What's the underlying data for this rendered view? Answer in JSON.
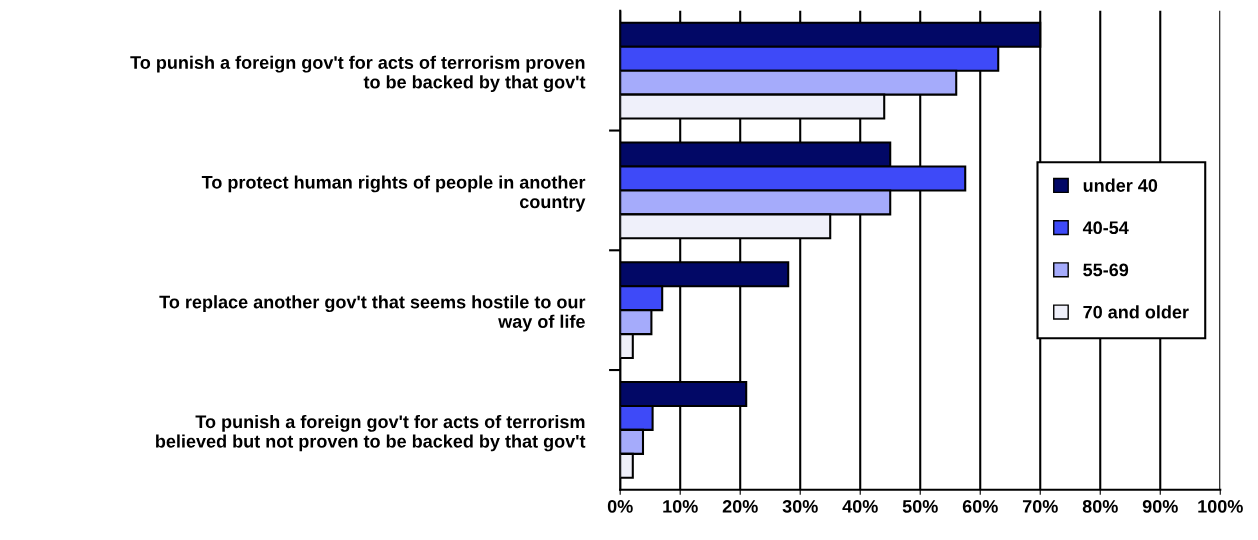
{
  "chart_data": {
    "type": "bar",
    "orientation": "horizontal",
    "categories": [
      "To punish a foreign gov't for acts of terrorism proven\nto be backed by that gov't",
      "To protect human rights of people in another\ncountry",
      "To replace another gov't that seems hostile to our\nway of life",
      "To punish a foreign gov't for acts of terrorism\nbelieved but not proven to be backed by that gov't"
    ],
    "series": [
      {
        "name": "under 40",
        "color": "#020866",
        "values": [
          70,
          45,
          28,
          21
        ]
      },
      {
        "name": "40-54",
        "color": "#3e4af8",
        "values": [
          63,
          57.5,
          7,
          5.4
        ]
      },
      {
        "name": "55-69",
        "color": "#a5abfb",
        "values": [
          56,
          45,
          5.2,
          3.8
        ]
      },
      {
        "name": "70 and older",
        "color": "#eff0fa",
        "values": [
          44,
          35,
          2.1,
          2.1
        ]
      }
    ],
    "xlim": [
      0,
      100
    ],
    "xticks": [
      {
        "value": 0,
        "label": "0%"
      },
      {
        "value": 10,
        "label": "10%"
      },
      {
        "value": 20,
        "label": "20%"
      },
      {
        "value": 30,
        "label": "30%"
      },
      {
        "value": 40,
        "label": "40%"
      },
      {
        "value": 50,
        "label": "50%"
      },
      {
        "value": 60,
        "label": "60%"
      },
      {
        "value": 70,
        "label": "70%"
      },
      {
        "value": 80,
        "label": "80%"
      },
      {
        "value": 90,
        "label": "90%"
      },
      {
        "value": 100,
        "label": "100%"
      }
    ],
    "grid": "x",
    "legend": "center right"
  }
}
